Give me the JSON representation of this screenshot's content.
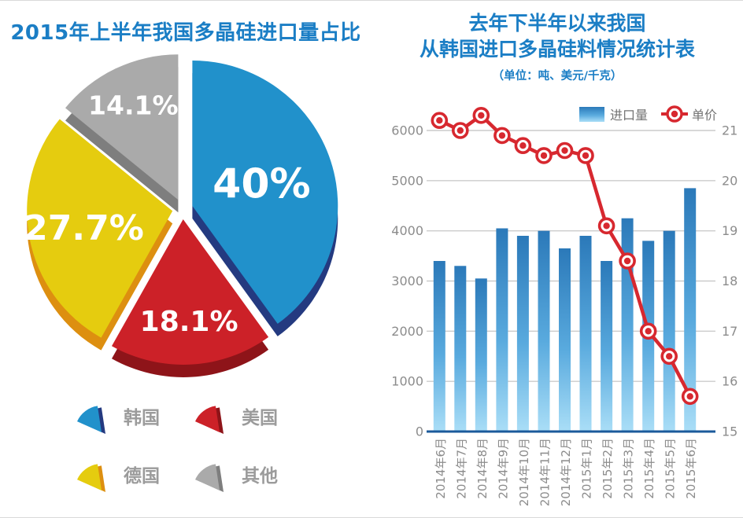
{
  "colors": {
    "title_blue": "#1b7ec5",
    "axis_text": "#8c8c8c",
    "gridline": "#cbcbcb",
    "baseline_blue": "#1b5a9b",
    "legend_text": "#737373",
    "pie_label_white": "#ffffff"
  },
  "chart_data": [
    {
      "type": "pie",
      "title": "2015年上半年我国多晶硅进口量占比",
      "legend_position": "bottom",
      "slices": [
        {
          "label": "韩国",
          "value": 40.0,
          "display": "40%",
          "color": "#2191cb",
          "edge_color": "#243a80"
        },
        {
          "label": "美国",
          "value": 18.1,
          "display": "18.1%",
          "color": "#cc2128",
          "edge_color": "#8e1419"
        },
        {
          "label": "德国",
          "value": 27.7,
          "display": "27.7%",
          "color": "#e5cc0f",
          "edge_color": "#dd8f10"
        },
        {
          "label": "其他",
          "value": 14.1,
          "display": "14.1%",
          "color": "#aaaaaa",
          "edge_color": "#7e7e7e"
        }
      ]
    },
    {
      "type": "bar+line",
      "title": "去年下半年以来我国从韩国进口多晶硅料情况统计表",
      "title_line1": "去年下半年以来我国",
      "title_line2": "从韩国进口多晶硅料情况统计表",
      "unit": "（单位：吨、美元/千克）",
      "legend_position": "top",
      "grid": true,
      "categories": [
        "2014年6月",
        "2014年7月",
        "2014年8月",
        "2014年9月",
        "2014年10月",
        "2014年11月",
        "2014年12月",
        "2015年1月",
        "2015年2月",
        "2015年3月",
        "2015年4月",
        "2015年5月",
        "2015年6月"
      ],
      "series": [
        {
          "name": "进口量",
          "type": "bar",
          "axis": "left",
          "color_top": "#2b79b9",
          "color_mid": "#59aade",
          "color_bottom": "#aadef7",
          "values": [
            3400,
            3300,
            3050,
            4050,
            3900,
            4000,
            3650,
            3900,
            3400,
            4250,
            3800,
            4000,
            4850
          ]
        },
        {
          "name": "单价",
          "type": "line",
          "axis": "right",
          "color": "#d7282f",
          "values": [
            21.2,
            21.0,
            21.3,
            20.9,
            20.7,
            20.5,
            20.6,
            20.5,
            19.1,
            18.4,
            17.0,
            16.5,
            15.7
          ]
        }
      ],
      "left_axis": {
        "min": 0,
        "max": 6000,
        "ticks": [
          0,
          1000,
          2000,
          3000,
          4000,
          5000,
          6000
        ]
      },
      "right_axis": {
        "min": 15,
        "max": 21,
        "ticks": [
          15,
          16,
          17,
          18,
          19,
          20,
          21
        ]
      }
    }
  ]
}
